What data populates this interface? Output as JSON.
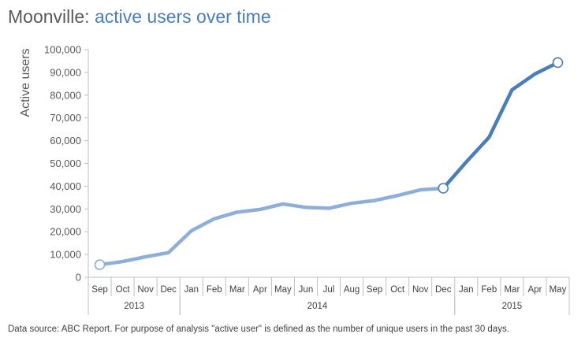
{
  "title": {
    "brand": "Moonville:",
    "subtitle": "active users over time"
  },
  "footnote": "Data source: ABC Report. For purpose of analysis \"active user\" is defined as the number of unique users in the past 30 days.",
  "colors": {
    "history": "#8caed8",
    "recent": "#4a7ebb",
    "axis": "#bfbfbf",
    "text": "#595959"
  },
  "chart_data": {
    "type": "line",
    "ylabel": "Active users",
    "ylim": [
      0,
      100000
    ],
    "yticks": [
      0,
      10000,
      20000,
      30000,
      40000,
      50000,
      60000,
      70000,
      80000,
      90000,
      100000
    ],
    "ytick_labels": [
      "0",
      "10,000",
      "20,000",
      "30,000",
      "40,000",
      "50,000",
      "60,000",
      "70,000",
      "80,000",
      "90,000",
      "100,000"
    ],
    "categories": [
      "Sep",
      "Oct",
      "Nov",
      "Dec",
      "Jan",
      "Feb",
      "Mar",
      "Apr",
      "May",
      "Jun",
      "Jul",
      "Aug",
      "Sep",
      "Oct",
      "Nov",
      "Dec",
      "Jan",
      "Feb",
      "Mar",
      "Apr",
      "May"
    ],
    "years": [
      {
        "label": "2013",
        "start": 0,
        "end": 3
      },
      {
        "label": "2014",
        "start": 4,
        "end": 15
      },
      {
        "label": "2015",
        "start": 16,
        "end": 20
      }
    ],
    "series": [
      {
        "values": [
          5500,
          6900,
          9000,
          10800,
          20400,
          25700,
          28600,
          29800,
          32200,
          30700,
          30300,
          32500,
          33700,
          35900,
          38400,
          39100,
          50600,
          61500,
          82300,
          89300,
          94300
        ]
      }
    ],
    "highlight_from_index": 15,
    "marked_points": [
      0,
      15,
      20
    ],
    "grid": false
  }
}
